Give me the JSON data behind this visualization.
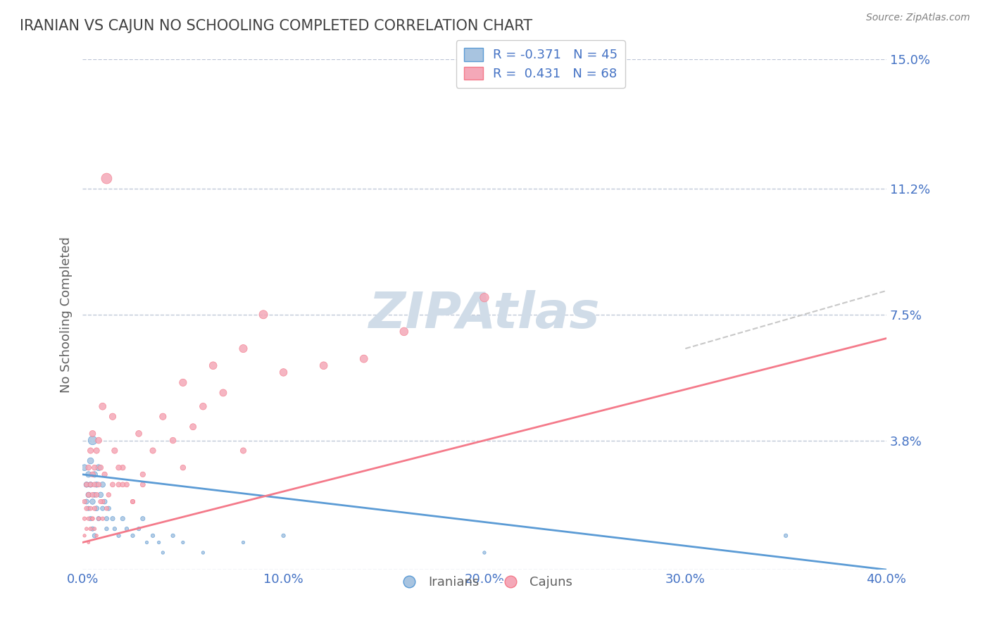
{
  "title": "IRANIAN VS CAJUN NO SCHOOLING COMPLETED CORRELATION CHART",
  "source_text": "Source: ZipAtlas.com",
  "xlabel": "",
  "ylabel": "No Schooling Completed",
  "xlim": [
    0.0,
    0.4
  ],
  "ylim": [
    0.0,
    0.15
  ],
  "yticks": [
    0.0,
    0.038,
    0.075,
    0.112,
    0.15
  ],
  "ytick_labels": [
    "",
    "3.8%",
    "7.5%",
    "11.2%",
    "15.0%"
  ],
  "xticks": [
    0.0,
    0.1,
    0.2,
    0.3,
    0.4
  ],
  "xtick_labels": [
    "0.0%",
    "10.0%",
    "20.0%",
    "30.0%",
    "40.0%"
  ],
  "legend1_label": "R = -0.371   N = 45",
  "legend2_label": "R =  0.431   N = 68",
  "legend_footer1": "Iranians",
  "legend_footer2": "Cajuns",
  "blue_color": "#a8c4e0",
  "pink_color": "#f4a8b8",
  "blue_line_color": "#5b9bd5",
  "pink_line_color": "#f47a8a",
  "title_color": "#404040",
  "axis_label_color": "#4472C4",
  "tick_color": "#4472C4",
  "grid_color": "#c0c8d8",
  "watermark_color": "#d0dce8",
  "iranians_scatter": {
    "x": [
      0.001,
      0.002,
      0.002,
      0.003,
      0.003,
      0.003,
      0.004,
      0.004,
      0.004,
      0.005,
      0.005,
      0.005,
      0.006,
      0.006,
      0.006,
      0.007,
      0.007,
      0.008,
      0.008,
      0.009,
      0.01,
      0.01,
      0.011,
      0.012,
      0.012,
      0.013,
      0.015,
      0.016,
      0.018,
      0.02,
      0.022,
      0.025,
      0.028,
      0.03,
      0.032,
      0.035,
      0.038,
      0.04,
      0.045,
      0.05,
      0.06,
      0.08,
      0.1,
      0.2,
      0.35
    ],
    "y": [
      0.03,
      0.025,
      0.02,
      0.028,
      0.022,
      0.018,
      0.032,
      0.025,
      0.015,
      0.038,
      0.02,
      0.012,
      0.028,
      0.022,
      0.01,
      0.025,
      0.018,
      0.03,
      0.015,
      0.022,
      0.025,
      0.018,
      0.02,
      0.015,
      0.012,
      0.018,
      0.015,
      0.012,
      0.01,
      0.015,
      0.012,
      0.01,
      0.012,
      0.015,
      0.008,
      0.01,
      0.008,
      0.005,
      0.01,
      0.008,
      0.005,
      0.008,
      0.01,
      0.005,
      0.01
    ],
    "sizes": [
      40,
      30,
      25,
      35,
      30,
      20,
      40,
      30,
      20,
      80,
      30,
      20,
      35,
      25,
      20,
      30,
      25,
      40,
      20,
      30,
      30,
      20,
      25,
      20,
      15,
      20,
      20,
      15,
      15,
      20,
      15,
      15,
      15,
      20,
      10,
      15,
      10,
      10,
      15,
      10,
      10,
      10,
      15,
      10,
      15
    ]
  },
  "cajuns_scatter": {
    "x": [
      0.001,
      0.001,
      0.002,
      0.002,
      0.003,
      0.003,
      0.003,
      0.004,
      0.004,
      0.004,
      0.005,
      0.005,
      0.005,
      0.005,
      0.006,
      0.006,
      0.006,
      0.007,
      0.007,
      0.008,
      0.008,
      0.009,
      0.01,
      0.01,
      0.011,
      0.012,
      0.013,
      0.015,
      0.016,
      0.018,
      0.02,
      0.022,
      0.025,
      0.028,
      0.03,
      0.035,
      0.04,
      0.045,
      0.05,
      0.055,
      0.06,
      0.065,
      0.07,
      0.08,
      0.09,
      0.1,
      0.12,
      0.14,
      0.16,
      0.2,
      0.001,
      0.002,
      0.003,
      0.004,
      0.005,
      0.006,
      0.007,
      0.008,
      0.009,
      0.01,
      0.012,
      0.015,
      0.018,
      0.02,
      0.025,
      0.03,
      0.05,
      0.08
    ],
    "y": [
      0.02,
      0.015,
      0.025,
      0.018,
      0.03,
      0.022,
      0.015,
      0.035,
      0.025,
      0.012,
      0.04,
      0.028,
      0.022,
      0.015,
      0.03,
      0.025,
      0.018,
      0.035,
      0.022,
      0.038,
      0.025,
      0.03,
      0.048,
      0.02,
      0.028,
      0.018,
      0.022,
      0.025,
      0.035,
      0.025,
      0.03,
      0.025,
      0.02,
      0.04,
      0.028,
      0.035,
      0.045,
      0.038,
      0.055,
      0.042,
      0.048,
      0.06,
      0.052,
      0.065,
      0.075,
      0.058,
      0.06,
      0.062,
      0.07,
      0.08,
      0.01,
      0.012,
      0.008,
      0.018,
      0.015,
      0.012,
      0.01,
      0.015,
      0.02,
      0.015,
      0.115,
      0.045,
      0.03,
      0.025,
      0.02,
      0.025,
      0.03,
      0.035
    ],
    "sizes": [
      20,
      15,
      25,
      20,
      30,
      25,
      15,
      35,
      25,
      15,
      40,
      30,
      25,
      15,
      30,
      25,
      20,
      35,
      25,
      40,
      25,
      30,
      50,
      20,
      28,
      18,
      22,
      25,
      35,
      25,
      30,
      25,
      20,
      40,
      28,
      35,
      45,
      38,
      55,
      42,
      48,
      60,
      52,
      65,
      75,
      58,
      60,
      62,
      70,
      80,
      10,
      12,
      8,
      18,
      15,
      12,
      10,
      15,
      20,
      15,
      115,
      45,
      30,
      25,
      20,
      25,
      30,
      35
    ]
  },
  "blue_trend": {
    "x_start": 0.0,
    "x_end": 0.4,
    "y_start": 0.028,
    "y_end": 0.0
  },
  "pink_trend": {
    "x_start": 0.0,
    "x_end": 0.4,
    "y_start": 0.008,
    "y_end": 0.068
  },
  "gray_trend_color": "#c8c8c8",
  "background_color": "#ffffff",
  "plot_bg_color": "#ffffff"
}
